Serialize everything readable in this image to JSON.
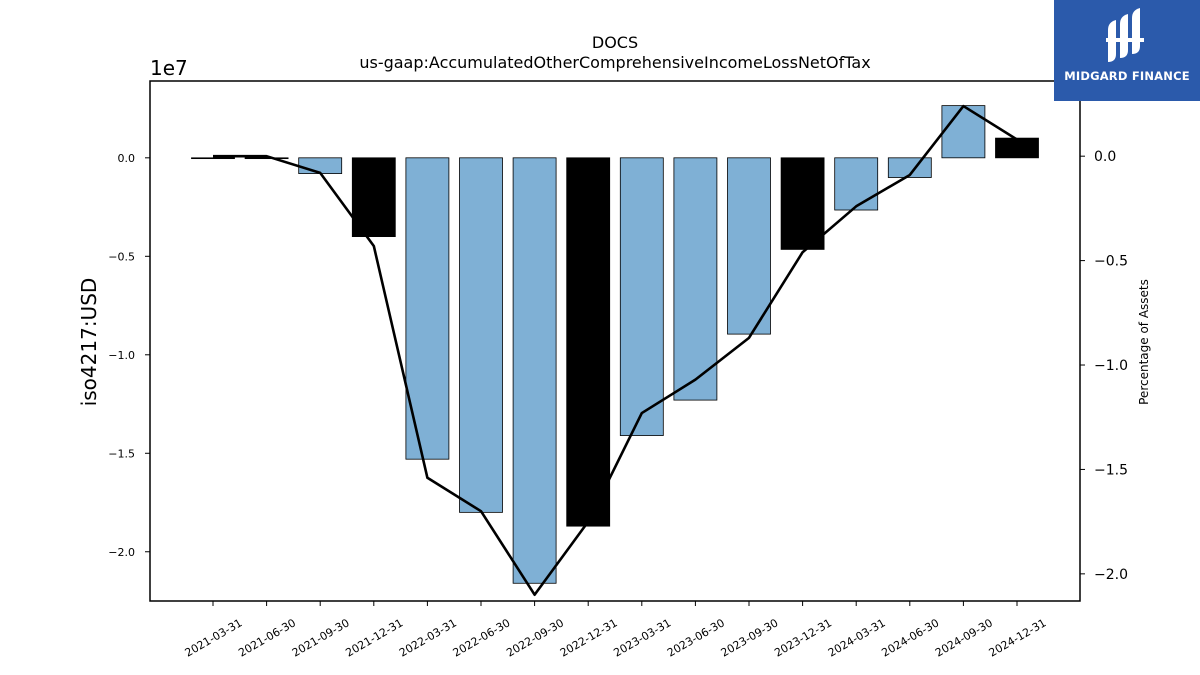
{
  "chart_data": {
    "type": "bar",
    "title": "DOCS",
    "subtitle": "us-gaap:AccumulatedOtherComprehensiveIncomeLossNetOfTax",
    "ylabel": "iso4217:USD",
    "y2label": "Percentage of Assets",
    "y_multiplier_label": "1e7",
    "categories": [
      "2021-03-31",
      "2021-06-30",
      "2021-09-30",
      "2021-12-31",
      "2022-03-31",
      "2022-06-30",
      "2022-09-30",
      "2022-12-31",
      "2023-03-31",
      "2023-06-30",
      "2023-09-30",
      "2023-12-31",
      "2024-03-31",
      "2024-06-30",
      "2024-09-30",
      "2024-12-31"
    ],
    "series": [
      {
        "type": "bar",
        "values": [
          -10000,
          -20000,
          -800000,
          -4000000,
          -15300000,
          -18000000,
          -21600000,
          -18700000,
          -14100000,
          -12300000,
          -8950000,
          -4650000,
          -2650000,
          -1000000,
          2650000,
          1000000
        ],
        "highlight": [
          false,
          true,
          false,
          true,
          false,
          false,
          false,
          true,
          false,
          false,
          false,
          true,
          false,
          false,
          false,
          true
        ]
      },
      {
        "type": "line",
        "axis": "right",
        "values": [
          0.0,
          0.0,
          -0.08,
          -0.43,
          -1.54,
          -1.7,
          -2.1,
          -1.75,
          -1.23,
          -1.07,
          -0.87,
          -0.46,
          -0.24,
          -0.09,
          0.24,
          0.08
        ]
      }
    ],
    "ylim": [
      -22500000,
      3900000
    ],
    "yticks": [
      -20000000,
      -15000000,
      -10000000,
      -5000000,
      0
    ],
    "ytick_labels": [
      "−2.0",
      "−1.5",
      "−1.0",
      "−0.5",
      "0.0"
    ],
    "y2lim": [
      -2.13,
      0.36
    ],
    "y2ticks": [
      -2.0,
      -1.5,
      -1.0,
      -0.5,
      0.0
    ],
    "y2tick_labels": [
      "−2.0",
      "−1.5",
      "−1.0",
      "−0.5",
      "0.0"
    ],
    "colors": {
      "bar": "#7fb0d5",
      "bar_highlight": "#000000",
      "line": "#000000"
    },
    "grid": false
  },
  "logo": {
    "text": "MIDGARD FINANCE",
    "color": "#2b5aab"
  }
}
